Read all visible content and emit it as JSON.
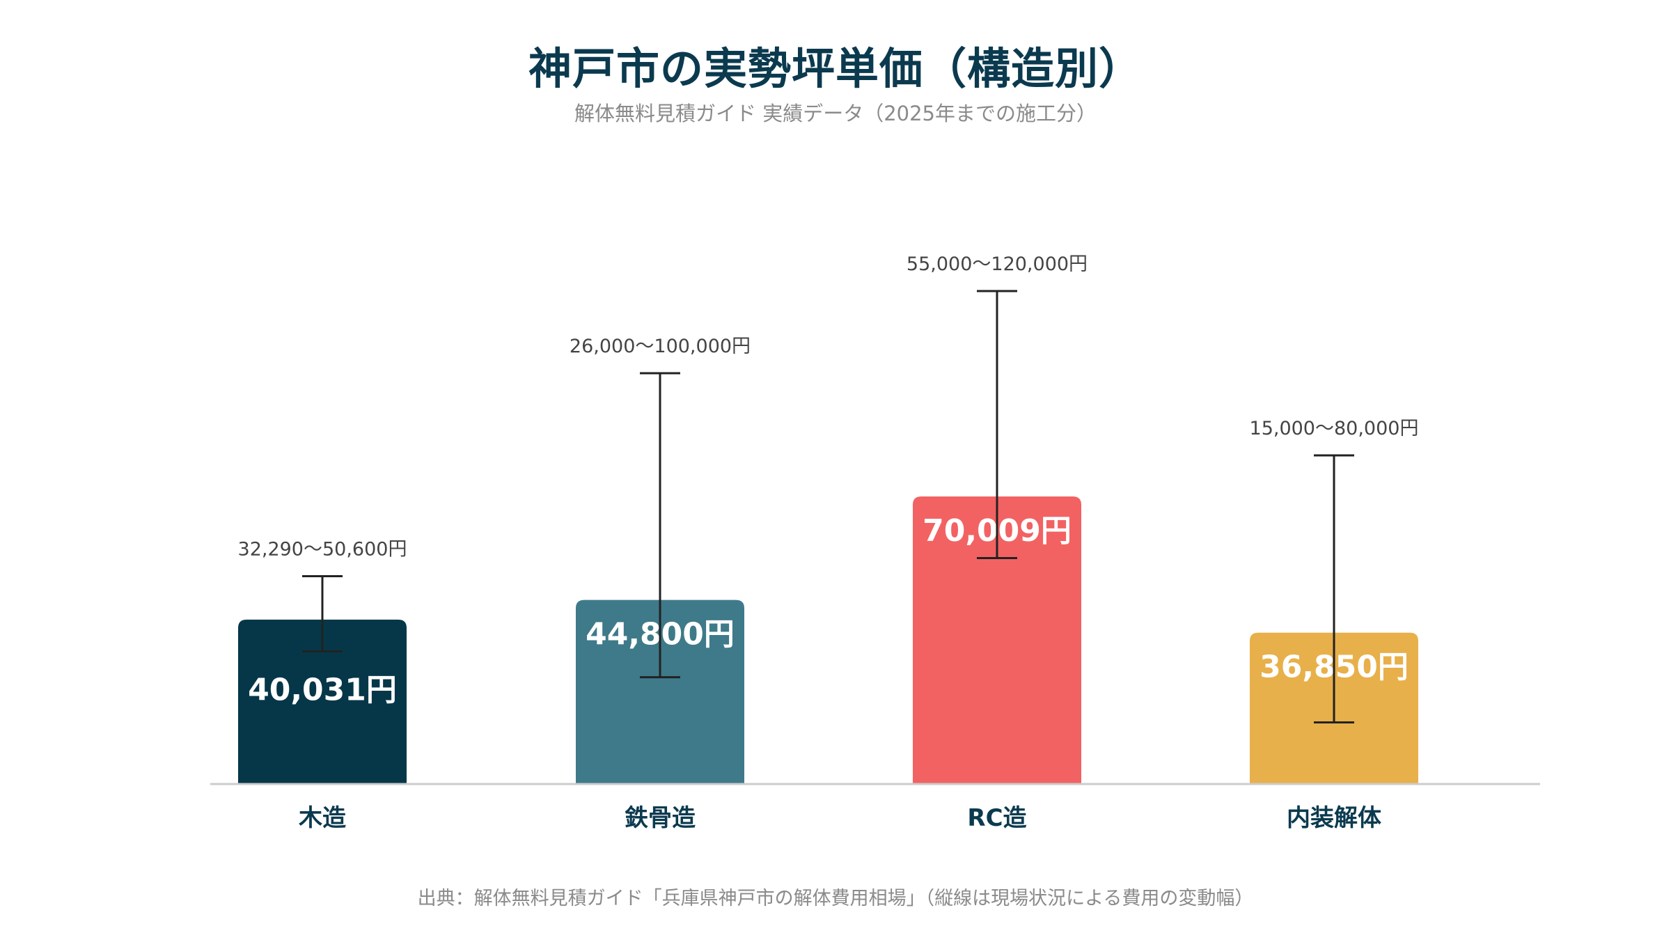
{
  "title": "神戸市の実勢坪単価（構造別）",
  "subtitle": "解体無料見積ガイド 実績データ（2025年までの施工分）",
  "source": "出典：解体無料見積ガイド「兵庫県神戸市の解体費用相場」（縦線は現場状況による費用の変動幅）",
  "chart_data": {
    "type": "bar",
    "title": "神戸市の実勢坪単価（構造別）",
    "subtitle": "解体無料見積ガイド 実績データ（2025年までの施工分）",
    "categories": [
      "木造",
      "鉄骨造",
      "RC造",
      "内装解体"
    ],
    "values": [
      40031,
      44800,
      70009,
      36850
    ],
    "value_labels": [
      "40,031円",
      "44,800円",
      "70,009円",
      "36,850円"
    ],
    "ranges": [
      [
        32290,
        50600
      ],
      [
        26000,
        100000
      ],
      [
        55000,
        120000
      ],
      [
        15000,
        80000
      ]
    ],
    "range_labels": [
      "32,290〜50,600円",
      "26,000〜100,000円",
      "55,000〜120,000円",
      "15,000〜80,000円"
    ],
    "colors": [
      "#063749",
      "#3e7a8a",
      "#f26262",
      "#e8b04a"
    ],
    "ylim": [
      0,
      140000
    ],
    "grid": false,
    "legend": "none",
    "xlabel": "",
    "ylabel": ""
  }
}
